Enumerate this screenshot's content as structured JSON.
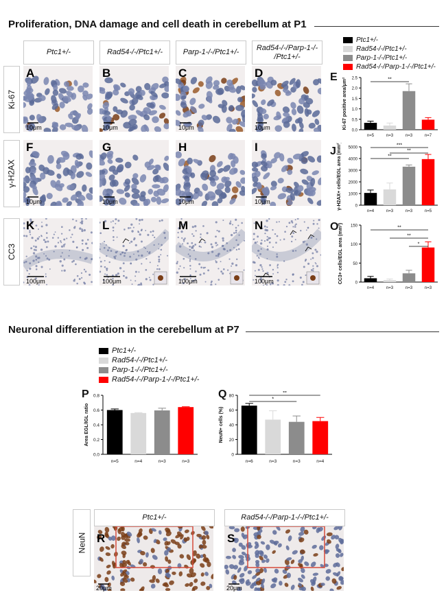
{
  "section1": {
    "title": "Proliferation, DNA damage and cell death in cerebellum at P1"
  },
  "section2": {
    "title": "Neuronal differentiation in the cerebellum  at P7"
  },
  "columns": [
    "Ptc1+/-",
    "Rad54-/-/Ptc1+/-",
    "Parp-1-/-/Ptc1+/-",
    "Rad54-/-/Parp-1-/- /Ptc1+/-"
  ],
  "rows": [
    "Ki-67",
    "γ-H2AX",
    "CC3"
  ],
  "panel_letters": [
    "A",
    "B",
    "C",
    "D",
    "F",
    "G",
    "H",
    "I",
    "K",
    "L",
    "M",
    "N"
  ],
  "scale_bars": {
    "small": "10μm",
    "large": "100μm",
    "neun": "20μm"
  },
  "genotypes": [
    "Ptc1+/-",
    "Rad54-/-/Ptc1+/-",
    "Parp-1-/-/Ptc1+/-",
    "Rad54-/-/Parp-1-/-/Ptc1+/-"
  ],
  "colors": {
    "black": "#000000",
    "light": "#d9d9d9",
    "grey": "#8c8c8c",
    "red": "#ff0000",
    "tissue": "#e9e4e4",
    "nucleus": "#5b6a98",
    "brown": "#8a4a1c",
    "box": "#d64a3a"
  },
  "neun": {
    "row_label": "NeuN",
    "headers": [
      "Ptc1+/-",
      "Rad54-/-/Parp-1-/-/Ptc1+/-"
    ],
    "letters": [
      "R",
      "S"
    ]
  },
  "chart_data": [
    {
      "id": "E",
      "type": "bar",
      "ylabel": "Ki-67 positive area/μm²",
      "ylim": [
        0,
        2.5
      ],
      "yticks": [
        0,
        0.5,
        1.0,
        1.5,
        2.0,
        2.5
      ],
      "categories": [
        "Ptc1+/-",
        "Rad54-/-/Ptc1+/-",
        "Parp-1-/-/Ptc1+/-",
        "Rad54-/-/Parp-1-/-/Ptc1+/-"
      ],
      "values": [
        0.33,
        0.2,
        1.85,
        0.48
      ],
      "errors": [
        0.08,
        0.12,
        0.35,
        0.1
      ],
      "n_labels": [
        "n=5",
        "n=3",
        "n=3",
        "n=7"
      ],
      "significance": [
        {
          "from": 0,
          "to": 2,
          "label": "**"
        }
      ]
    },
    {
      "id": "J",
      "type": "bar",
      "ylabel": "γ-H2AX+ cells/EGL area (mm²)",
      "ylim": [
        0,
        5000
      ],
      "yticks": [
        0,
        1000,
        2000,
        3000,
        4000,
        5000
      ],
      "categories": [
        "Ptc1+/-",
        "Rad54-/-/Ptc1+/-",
        "Parp-1-/-/Ptc1+/-",
        "Rad54-/-/Parp-1-/-/Ptc1+/-"
      ],
      "values": [
        1050,
        1350,
        3300,
        3950
      ],
      "errors": [
        250,
        550,
        150,
        400
      ],
      "n_labels": [
        "n=4",
        "n=3",
        "n=3",
        "n=5"
      ],
      "significance": [
        {
          "from": 0,
          "to": 3,
          "label": "***"
        },
        {
          "from": 1,
          "to": 3,
          "label": "**"
        },
        {
          "from": 0,
          "to": 2,
          "label": "**"
        }
      ]
    },
    {
      "id": "O",
      "type": "bar",
      "ylabel": "CC3+ cells/EGL area (mm²)",
      "ylim": [
        0,
        150
      ],
      "yticks": [
        0,
        50,
        100,
        150
      ],
      "categories": [
        "Ptc1+/-",
        "Rad54-/-/Ptc1+/-",
        "Parp-1-/-/Ptc1+/-",
        "Rad54-/-/Parp-1-/-/Ptc1+/-"
      ],
      "values": [
        10,
        5,
        23,
        91
      ],
      "errors": [
        5,
        3,
        8,
        15
      ],
      "n_labels": [
        "n=4",
        "n=3",
        "n=3",
        "n=3"
      ],
      "significance": [
        {
          "from": 0,
          "to": 3,
          "label": "**"
        },
        {
          "from": 1,
          "to": 3,
          "label": "**"
        },
        {
          "from": 2,
          "to": 3,
          "label": "*"
        }
      ]
    },
    {
      "id": "P",
      "type": "bar",
      "ylabel": "Area EGL/IGL ratio",
      "ylim": [
        0,
        0.8
      ],
      "yticks": [
        0,
        0.2,
        0.4,
        0.6,
        0.8
      ],
      "categories": [
        "Ptc1+/-",
        "Rad54-/-/Ptc1+/-",
        "Parp-1-/-/Ptc1+/-",
        "Rad54-/-/Parp-1-/-/Ptc1+/-"
      ],
      "values": [
        0.6,
        0.56,
        0.595,
        0.64
      ],
      "errors": [
        0.015,
        0.005,
        0.03,
        0.005
      ],
      "n_labels": [
        "n=5",
        "n=4",
        "n=3",
        "n=3"
      ],
      "significance": []
    },
    {
      "id": "Q",
      "type": "bar",
      "ylabel": "NeuN+ cells (%)",
      "ylim": [
        0,
        80
      ],
      "yticks": [
        0,
        20,
        40,
        60,
        80
      ],
      "categories": [
        "Ptc1+/-",
        "Rad54-/-/Ptc1+/-",
        "Parp-1-/-/Ptc1+/-",
        "Rad54-/-/Parp-1-/-/Ptc1+/-"
      ],
      "values": [
        66,
        47,
        44,
        45
      ],
      "errors": [
        3,
        12,
        8,
        5
      ],
      "n_labels": [
        "n=6",
        "n=3",
        "n=3",
        "n=4"
      ],
      "significance": [
        {
          "from": 0,
          "to": 3,
          "label": "**"
        },
        {
          "from": 0,
          "to": 2,
          "label": "*"
        }
      ]
    }
  ]
}
